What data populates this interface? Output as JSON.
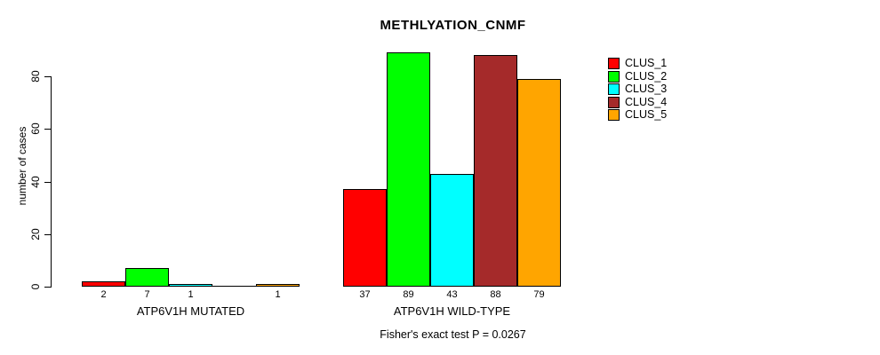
{
  "chart_data": {
    "type": "bar",
    "title": "METHLYATION_CNMF",
    "ylabel": "number of cases",
    "xlabel": "",
    "annotation": "Fisher's exact test P = 0.0267",
    "ylim": [
      0,
      80
    ],
    "yticks": [
      0,
      20,
      40,
      60,
      80
    ],
    "grid": false,
    "legend_position": "right",
    "categories": [
      "ATP6V1H MUTATED",
      "ATP6V1H WILD-TYPE"
    ],
    "series": [
      {
        "name": "CLUS_1",
        "color": "#FF0000",
        "values": [
          2,
          37
        ]
      },
      {
        "name": "CLUS_2",
        "color": "#00FF00",
        "values": [
          7,
          89
        ]
      },
      {
        "name": "CLUS_3",
        "color": "#00FFFF",
        "values": [
          1,
          43
        ]
      },
      {
        "name": "CLUS_4",
        "color": "#A52A2A",
        "values": [
          0,
          88
        ]
      },
      {
        "name": "CLUS_5",
        "color": "#FFA500",
        "values": [
          1,
          79
        ]
      }
    ],
    "bar_value_labels_visible": true,
    "zero_value_label_hidden": true,
    "text_color": "#000000",
    "background_color": "#FFFFFF"
  }
}
